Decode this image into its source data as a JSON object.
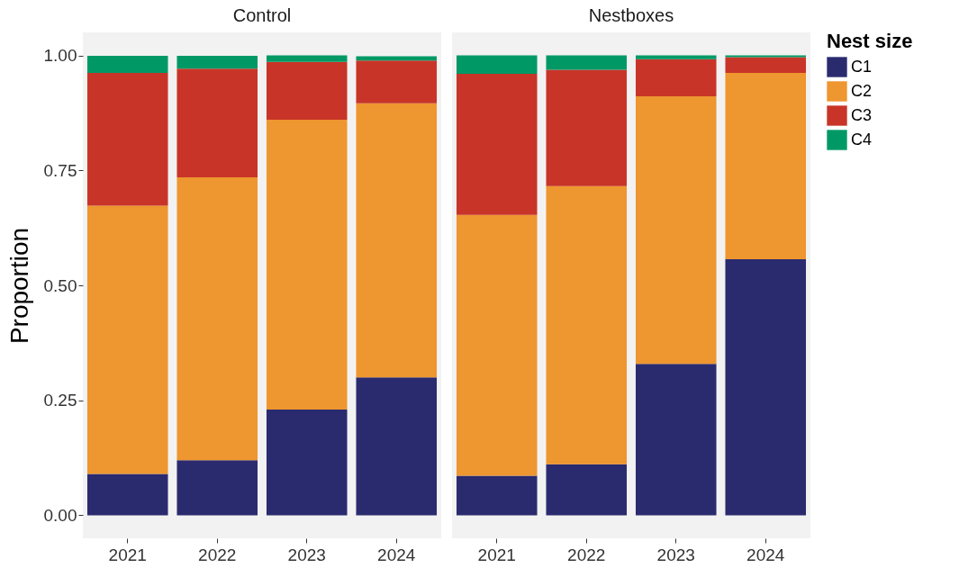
{
  "chart_data": [
    {
      "type": "bar",
      "title": "Control",
      "ylabel": "Proportion",
      "categories": [
        "2021",
        "2022",
        "2023",
        "2024"
      ],
      "stacked": true,
      "ylim": [
        -0.05,
        1.05
      ],
      "yticks": [
        {
          "value": 0,
          "label": "0.00"
        },
        {
          "value": 0.25,
          "label": "0.25"
        },
        {
          "value": 0.5,
          "label": "0.50"
        },
        {
          "value": 0.75,
          "label": "0.75"
        },
        {
          "value": 1,
          "label": "1.00"
        }
      ],
      "grid": false,
      "legend": "right",
      "legend_title": "Nest size",
      "series": [
        {
          "name": "C1",
          "color": "#2a2b6f",
          "values": [
            0.09,
            0.12,
            0.23,
            0.3
          ]
        },
        {
          "name": "C2",
          "color": "#ee962f",
          "values": [
            0.583,
            0.615,
            0.63,
            0.596
          ]
        },
        {
          "name": "C3",
          "color": "#c83528",
          "values": [
            0.289,
            0.236,
            0.126,
            0.093
          ]
        },
        {
          "name": "C4",
          "color": "#009966",
          "values": [
            0.037,
            0.028,
            0.014,
            0.009
          ]
        }
      ]
    },
    {
      "type": "bar",
      "title": "Nestboxes",
      "categories": [
        "2021",
        "2022",
        "2023",
        "2024"
      ],
      "stacked": true,
      "ylim": [
        -0.05,
        1.05
      ],
      "grid": false,
      "legend": "right",
      "tick_labels": "x",
      "series": [
        {
          "name": "C1",
          "color": "#2a2b6f",
          "values": [
            0.086,
            0.111,
            0.329,
            0.557
          ]
        },
        {
          "name": "C2",
          "color": "#ee962f",
          "values": [
            0.567,
            0.605,
            0.582,
            0.405
          ]
        },
        {
          "name": "C3",
          "color": "#c83528",
          "values": [
            0.307,
            0.253,
            0.081,
            0.034
          ]
        },
        {
          "name": "C4",
          "color": "#009966",
          "values": [
            0.04,
            0.031,
            0.008,
            0.004
          ]
        }
      ]
    }
  ]
}
